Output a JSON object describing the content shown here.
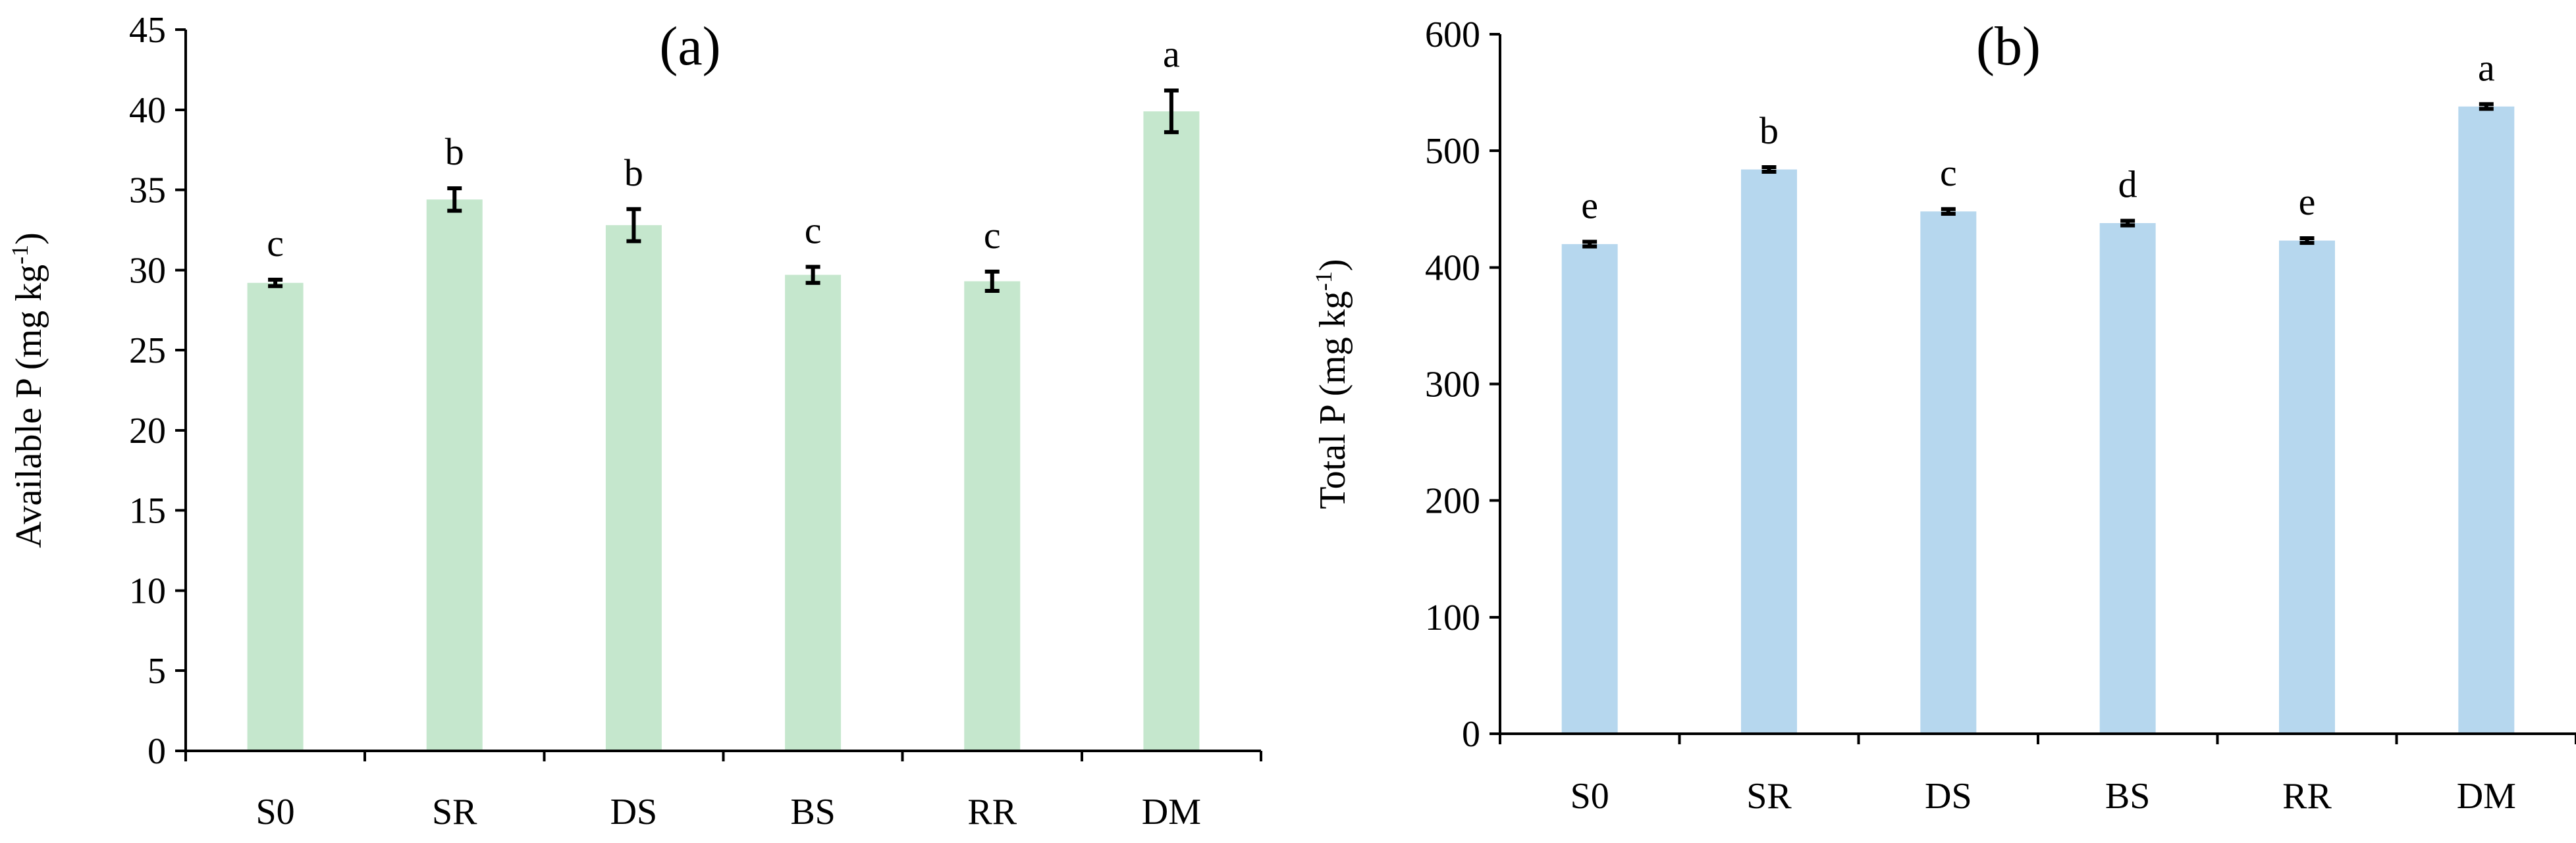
{
  "chart_data": [
    {
      "type": "bar",
      "panel_label": "(a)",
      "ylabel": "Available P (mg kg",
      "ylabel_sup": "-1",
      "ylabel_tail": ")",
      "categories": [
        "S0",
        "SR",
        "DS",
        "BS",
        "RR",
        "DM"
      ],
      "values": [
        29.2,
        34.4,
        32.8,
        29.7,
        29.3,
        39.9
      ],
      "errors": [
        0.2,
        0.7,
        1.0,
        0.5,
        0.6,
        1.3
      ],
      "significance": [
        "c",
        "b",
        "b",
        "c",
        "c",
        "a"
      ],
      "ylim": [
        0,
        45
      ],
      "yticks": [
        0,
        5,
        10,
        15,
        20,
        25,
        30,
        35,
        40,
        45
      ],
      "bar_color": "#c5e7cd",
      "grid": false
    },
    {
      "type": "bar",
      "panel_label": "(b)",
      "ylabel": "Total P (mg kg",
      "ylabel_sup": "-1",
      "ylabel_tail": ")",
      "categories": [
        "S0",
        "SR",
        "DS",
        "BS",
        "RR",
        "DM"
      ],
      "values": [
        420,
        484,
        448,
        438,
        423,
        538
      ],
      "errors": [
        2,
        2,
        2,
        2,
        2,
        2
      ],
      "significance": [
        "e",
        "b",
        "c",
        "d",
        "e",
        "a"
      ],
      "ylim": [
        0,
        600
      ],
      "yticks": [
        0,
        100,
        200,
        300,
        400,
        500,
        600
      ],
      "bar_color": "#b6d7ee",
      "grid": false
    }
  ]
}
